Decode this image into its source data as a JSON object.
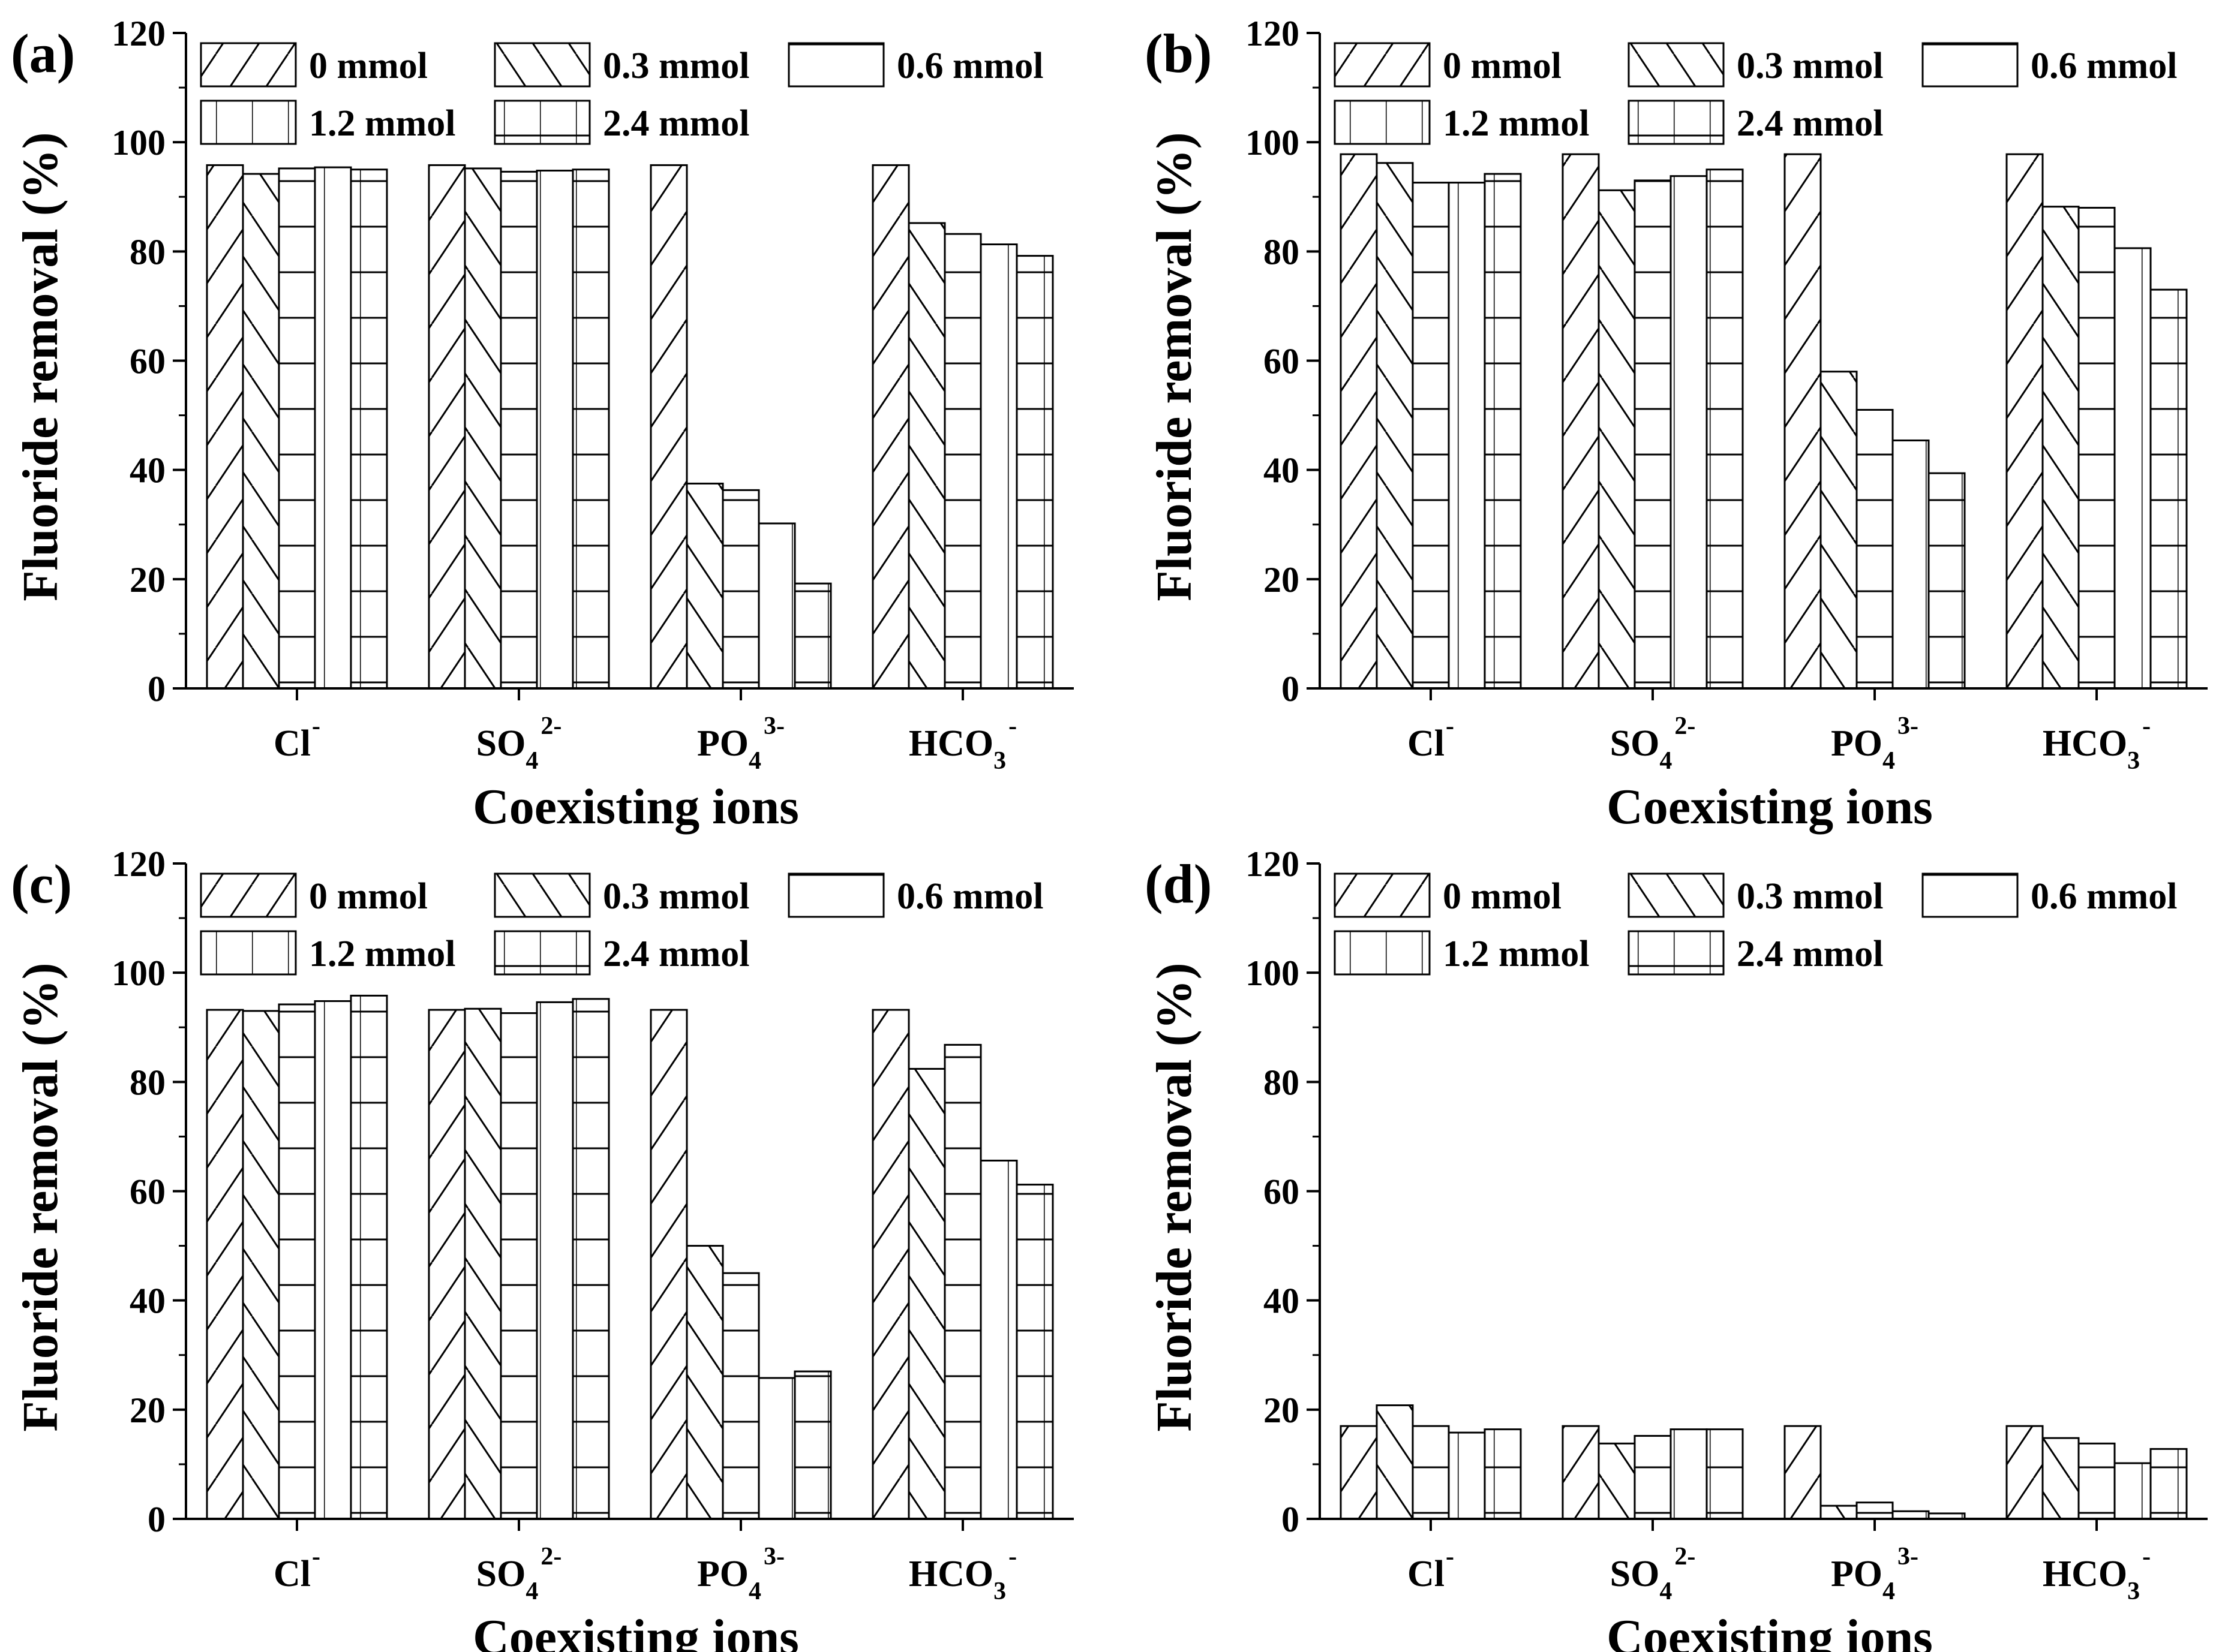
{
  "chart_data": [
    {
      "type": "bar",
      "panel_label": "(a)",
      "categories": [
        "Cl",
        "SO4",
        "PO4",
        "HCO3"
      ],
      "category_labels": [
        {
          "base": "Cl",
          "sub": "",
          "sup": "-"
        },
        {
          "base": "SO",
          "sub": "4",
          "sup": "2-"
        },
        {
          "base": "PO",
          "sub": "4",
          "sup": "3-"
        },
        {
          "base": "HCO",
          "sub": "3",
          "sup": "-"
        }
      ],
      "series": [
        {
          "name": "0 mmol",
          "values": [
            95.8,
            95.8,
            95.8,
            95.8
          ]
        },
        {
          "name": "0.3 mmol",
          "values": [
            94.2,
            95.2,
            37.5,
            85.2
          ]
        },
        {
          "name": "0.6 mmol",
          "values": [
            95.2,
            94.6,
            36.3,
            83.2
          ]
        },
        {
          "name": "1.2 mmol",
          "values": [
            95.4,
            94.8,
            30.2,
            81.3
          ]
        },
        {
          "name": "2.4 mmol",
          "values": [
            95.0,
            95.0,
            19.2,
            79.2
          ]
        }
      ],
      "xlabel": "Coexisting ions",
      "ylabel": "Fluoride removal (%)",
      "ylim": [
        0,
        120
      ],
      "yticks": [
        "0",
        "20",
        "40",
        "60",
        "80",
        "100",
        "120"
      ]
    },
    {
      "type": "bar",
      "panel_label": "(b)",
      "categories": [
        "Cl",
        "SO4",
        "PO4",
        "HCO3"
      ],
      "category_labels": [
        {
          "base": "Cl",
          "sub": "",
          "sup": "-"
        },
        {
          "base": "SO",
          "sub": "4",
          "sup": "2-"
        },
        {
          "base": "PO",
          "sub": "4",
          "sup": "3-"
        },
        {
          "base": "HCO",
          "sub": "3",
          "sup": "-"
        }
      ],
      "series": [
        {
          "name": "0 mmol",
          "values": [
            97.8,
            97.8,
            97.8,
            97.8
          ]
        },
        {
          "name": "0.3 mmol",
          "values": [
            96.2,
            91.2,
            58.0,
            88.2
          ]
        },
        {
          "name": "0.6 mmol",
          "values": [
            92.6,
            93.0,
            51.0,
            88.0
          ]
        },
        {
          "name": "1.2 mmol",
          "values": [
            92.6,
            93.8,
            45.4,
            80.6
          ]
        },
        {
          "name": "2.4 mmol",
          "values": [
            94.2,
            95.0,
            39.4,
            73.0
          ]
        }
      ],
      "xlabel": "Coexisting ions",
      "ylabel": "Fluoride removal (%)",
      "ylim": [
        0,
        120
      ],
      "yticks": [
        "0",
        "20",
        "40",
        "60",
        "80",
        "100",
        "120"
      ]
    },
    {
      "type": "bar",
      "panel_label": "(c)",
      "categories": [
        "Cl",
        "SO4",
        "PO4",
        "HCO3"
      ],
      "category_labels": [
        {
          "base": "Cl",
          "sub": "",
          "sup": "-"
        },
        {
          "base": "SO",
          "sub": "4",
          "sup": "2-"
        },
        {
          "base": "PO",
          "sub": "4",
          "sup": "3-"
        },
        {
          "base": "HCO",
          "sub": "3",
          "sup": "-"
        }
      ],
      "series": [
        {
          "name": "0 mmol",
          "values": [
            93.2,
            93.2,
            93.2,
            93.2
          ]
        },
        {
          "name": "0.3 mmol",
          "values": [
            93.0,
            93.4,
            50.0,
            82.4
          ]
        },
        {
          "name": "0.6 mmol",
          "values": [
            94.2,
            92.6,
            45.0,
            86.8
          ]
        },
        {
          "name": "1.2 mmol",
          "values": [
            94.8,
            94.6,
            25.8,
            65.6
          ]
        },
        {
          "name": "2.4 mmol",
          "values": [
            95.8,
            95.2,
            27.0,
            61.2
          ]
        }
      ],
      "xlabel": "Coexisting ions",
      "ylabel": "Fluoride removal (%)",
      "ylim": [
        0,
        120
      ],
      "yticks": [
        "0",
        "20",
        "40",
        "60",
        "80",
        "100",
        "120"
      ]
    },
    {
      "type": "bar",
      "panel_label": "(d)",
      "categories": [
        "Cl",
        "SO4",
        "PO4",
        "HCO3"
      ],
      "category_labels": [
        {
          "base": "Cl",
          "sub": "",
          "sup": "-"
        },
        {
          "base": "SO",
          "sub": "4",
          "sup": "2-"
        },
        {
          "base": "PO",
          "sub": "4",
          "sup": "3-"
        },
        {
          "base": "HCO",
          "sub": "3",
          "sup": "-"
        }
      ],
      "series": [
        {
          "name": "0 mmol",
          "values": [
            17.0,
            17.0,
            17.0,
            17.0
          ]
        },
        {
          "name": "0.3 mmol",
          "values": [
            20.8,
            13.8,
            2.4,
            14.8
          ]
        },
        {
          "name": "0.6 mmol",
          "values": [
            17.0,
            15.2,
            3.0,
            13.8
          ]
        },
        {
          "name": "1.2 mmol",
          "values": [
            15.8,
            16.4,
            1.4,
            10.2
          ]
        },
        {
          "name": "2.4 mmol",
          "values": [
            16.4,
            16.4,
            1.0,
            12.8
          ]
        }
      ],
      "xlabel": "Coexisting ions",
      "ylabel": "Fluoride removal (%)",
      "ylim": [
        0,
        120
      ],
      "yticks": [
        "0",
        "20",
        "40",
        "60",
        "80",
        "100",
        "120"
      ]
    }
  ]
}
